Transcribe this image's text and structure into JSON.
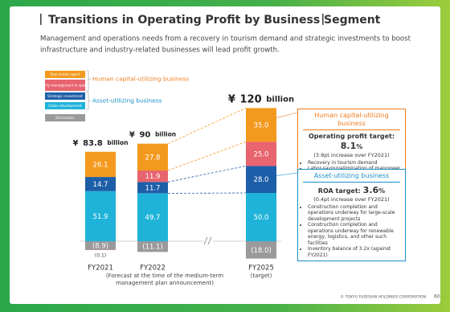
{
  "header": {
    "title": "Transitions in Operating Profit by Business Segment",
    "subtitle": [
      "Management and operations needs from a recovery in tourism demand and strategic investments to boost",
      "infrastructure and industry-related businesses will lead profit growth."
    ]
  },
  "chart_data": {
    "type": "stacked-bar",
    "categories": [
      "FY2021",
      "FY2022",
      "FY2025"
    ],
    "category_notes": [
      null,
      [
        "(Forecast at the time of the medium-term",
        "management plan announcement)"
      ],
      [
        "(target)"
      ]
    ],
    "series": [
      {
        "name": "Real estate agent",
        "color": "#f39a1e",
        "values": [
          26.1,
          27.8,
          35.0
        ],
        "value_labels": [
          "26.1",
          "27.8",
          "35.0"
        ]
      },
      {
        "name": "Property management & operation",
        "color": "#e8646e",
        "values": [
          -0.1,
          11.9,
          25.0
        ],
        "value_labels": [
          "(0.1)",
          "11.9",
          "25.0"
        ]
      },
      {
        "name": "Strategic investment",
        "color": "#1d5ea8",
        "values": [
          14.7,
          11.7,
          28.0
        ],
        "value_labels": [
          "14.7",
          "11.7",
          "28.0"
        ]
      },
      {
        "name": "Urban development",
        "color": "#1fb3d9",
        "values": [
          51.9,
          49.7,
          50.0
        ],
        "value_labels": [
          "51.9",
          "49.7",
          "50.0"
        ]
      },
      {
        "name": "Elimination",
        "color": "#9a9a9a",
        "values": [
          -8.9,
          -11.1,
          -18.0
        ],
        "value_labels": [
          "(8.9)",
          "(11.1)",
          "(18.0)"
        ]
      }
    ],
    "legend_groups": [
      {
        "label": "Human capital-utilizing business",
        "color": "#f07c1e"
      },
      {
        "label": "Asset-utilizing business",
        "color": "#1a8fc9"
      }
    ],
    "totals": [
      83.8,
      90,
      120
    ],
    "total_prefix": "¥",
    "total_unit": "billion"
  },
  "annotations": [
    {
      "title": "Human capital-utilizing business",
      "target_label": "Operating profit target:",
      "target_value": "8.1",
      "target_unit": "%",
      "note": "(3.9pt increase over FY2021)",
      "bullets": [
        "Recovery in tourism demand",
        "Labor-saving/elimination of manpower through DX"
      ]
    },
    {
      "title": "Asset-utilizing business",
      "target_label": "ROA target:",
      "target_value": "3.6",
      "target_unit": "%",
      "note": "(0.4pt increase over FY2021)",
      "bullets": [
        "Construction completion and operations underway for large-scale development projects",
        "Construction completion and operations underway for renewable energy, logistics, and other such facilities",
        "Inventory balance of 3.2x (against FY2021)"
      ]
    }
  ],
  "footer": {
    "copyright": "© TOKYU FUDOSAN HOLDINGS CORPORATION",
    "page": "60"
  }
}
